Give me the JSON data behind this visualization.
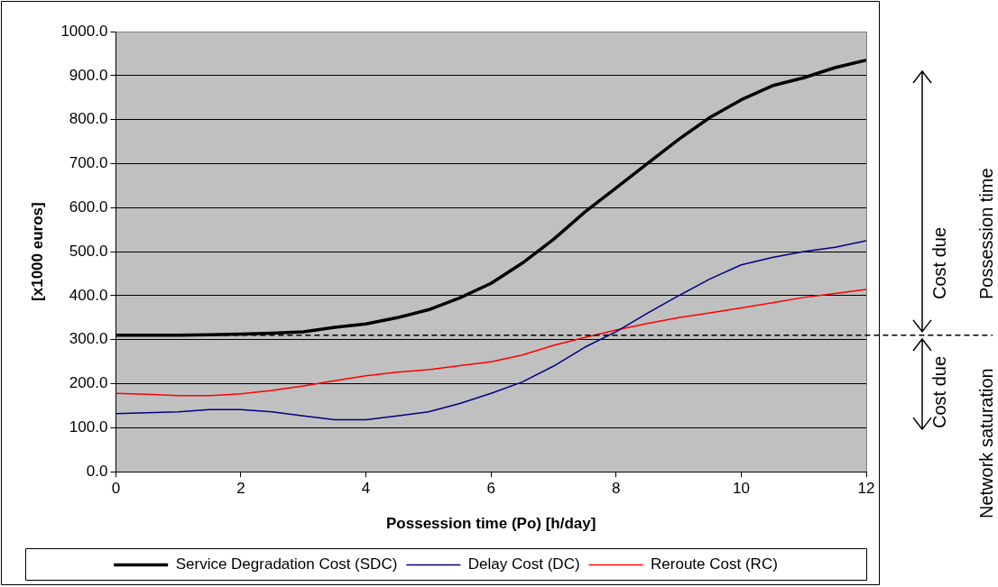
{
  "chart_data": {
    "type": "line",
    "xlabel": "Possession time (Po) [h/day]",
    "ylabel": "[x1000 euros]",
    "x": [
      0,
      0.5,
      1,
      1.5,
      2,
      2.5,
      3,
      3.5,
      4,
      4.5,
      5,
      5.5,
      6,
      6.5,
      7,
      7.5,
      8,
      8.5,
      9,
      9.5,
      10,
      10.5,
      11,
      11.5,
      12
    ],
    "series": [
      {
        "name": "Service Degradation Cost (SDC)",
        "color": "#000000",
        "values": [
          310,
          310,
          310,
          311,
          313,
          315,
          318,
          328,
          336,
          350,
          368,
          395,
          428,
          474,
          528,
          590,
          645,
          700,
          755,
          805,
          845,
          877,
          895,
          918,
          935
        ]
      },
      {
        "name": "Delay Cost (DC)",
        "color": "#000080",
        "values": [
          132,
          134,
          136,
          141,
          141,
          136,
          127,
          118,
          118,
          127,
          136,
          155,
          178,
          204,
          240,
          283,
          318,
          360,
          400,
          438,
          470,
          487,
          500,
          510,
          525
        ]
      },
      {
        "name": "Reroute Cost (RC)",
        "color": "#ff0000",
        "values": [
          178,
          176,
          173,
          173,
          177,
          185,
          195,
          207,
          218,
          226,
          232,
          241,
          250,
          265,
          287,
          305,
          322,
          337,
          350,
          361,
          372,
          384,
          396,
          405,
          414
        ]
      }
    ],
    "xlim": [
      0,
      12
    ],
    "xticks": [
      0,
      2,
      4,
      6,
      8,
      10,
      12
    ],
    "ylim": [
      0,
      1000
    ],
    "yticks": [
      {
        "value": 0,
        "label": "0.0"
      },
      {
        "value": 100,
        "label": "100.0"
      },
      {
        "value": 200,
        "label": "200.0"
      },
      {
        "value": 300,
        "label": "300.0"
      },
      {
        "value": 400,
        "label": "400.0"
      },
      {
        "value": 500,
        "label": "500.0"
      },
      {
        "value": 600,
        "label": "600.0"
      },
      {
        "value": 700,
        "label": "700.0"
      },
      {
        "value": 800,
        "label": "800.0"
      },
      {
        "value": 900,
        "label": "900.0"
      },
      {
        "value": 1000,
        "label": "1000.0"
      }
    ],
    "ref_lines": [
      {
        "axis": "y",
        "value": 310,
        "color": "#000000",
        "line_style": "dashed"
      }
    ],
    "annotations": [
      "Cost due",
      "Possession time",
      "Cost due",
      "Network saturation"
    ],
    "grid": "y",
    "legend": "bottom",
    "marker": "none",
    "line_style": "solid"
  }
}
